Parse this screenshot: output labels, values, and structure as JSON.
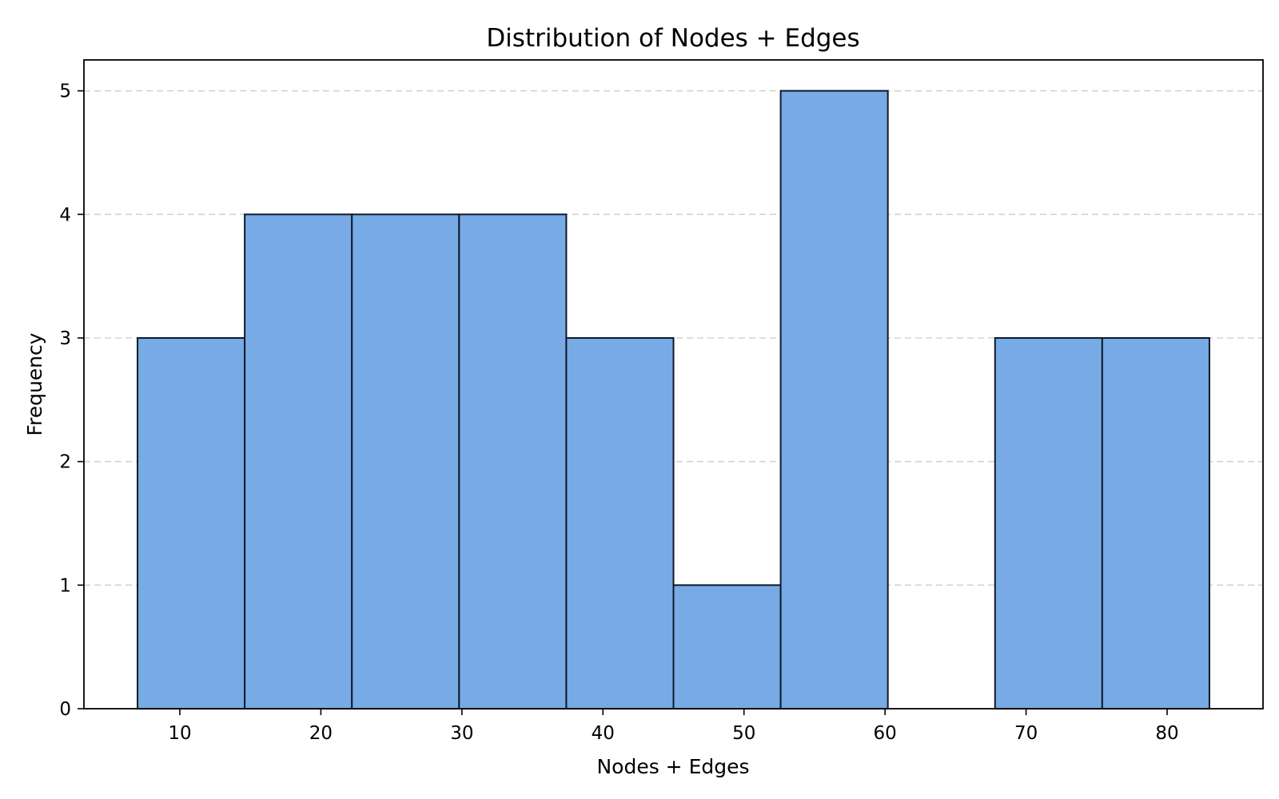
{
  "chart_data": {
    "type": "bar",
    "title": "Distribution of Nodes + Edges",
    "xlabel": "Nodes + Edges",
    "ylabel": "Frequency",
    "bin_edges": [
      7.0,
      14.6,
      22.2,
      29.8,
      37.4,
      45.0,
      52.6,
      60.2,
      67.8,
      75.4,
      83.0
    ],
    "counts": [
      3,
      4,
      4,
      4,
      3,
      1,
      5,
      0,
      3,
      3
    ],
    "xlim": [
      3.2,
      86.8
    ],
    "ylim": [
      0,
      5.25
    ],
    "xticks": [
      10,
      20,
      30,
      40,
      50,
      60,
      70,
      80
    ],
    "xtick_labels": [
      "10",
      "20",
      "30",
      "40",
      "50",
      "60",
      "70",
      "80"
    ],
    "yticks": [
      0,
      1,
      2,
      3,
      4,
      5
    ],
    "ytick_labels": [
      "0",
      "1",
      "2",
      "3",
      "4",
      "5"
    ],
    "grid": "y-dashed",
    "bar_color": "#78aae6",
    "bar_edge_color": "#0d1a2b",
    "grid_color": "#cccccc"
  }
}
